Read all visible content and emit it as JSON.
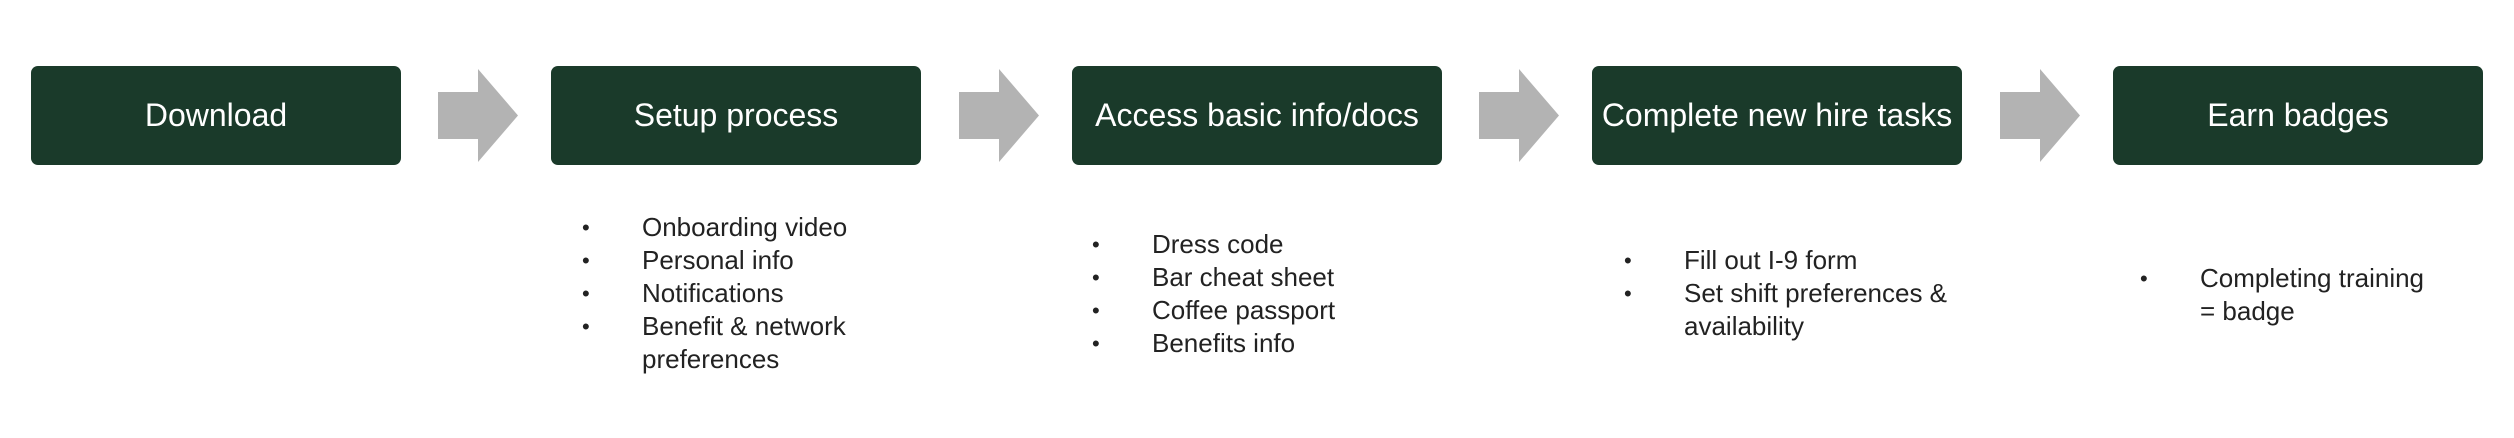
{
  "steps": [
    {
      "label": "Download",
      "bullets": []
    },
    {
      "label": "Setup process",
      "bullets": [
        "Onboarding video",
        "Personal info",
        "Notifications",
        "Benefit & network preferences"
      ]
    },
    {
      "label": "Access basic info/docs",
      "bullets": [
        "Dress code",
        "Bar cheat sheet",
        "Coffee passport",
        "Benefits info"
      ]
    },
    {
      "label": "Complete new hire tasks",
      "bullets": [
        "Fill out I-9 form",
        "Set shift preferences & availability"
      ]
    },
    {
      "label": "Earn badges",
      "bullets": [
        "Completing training = badge"
      ]
    }
  ],
  "colors": {
    "box": "#1a3a2a",
    "box_text": "#ffffff",
    "arrow": "#b3b3b3",
    "bullet_text": "#222222"
  },
  "icons": {
    "connector": "chevron-right-arrow-icon"
  }
}
